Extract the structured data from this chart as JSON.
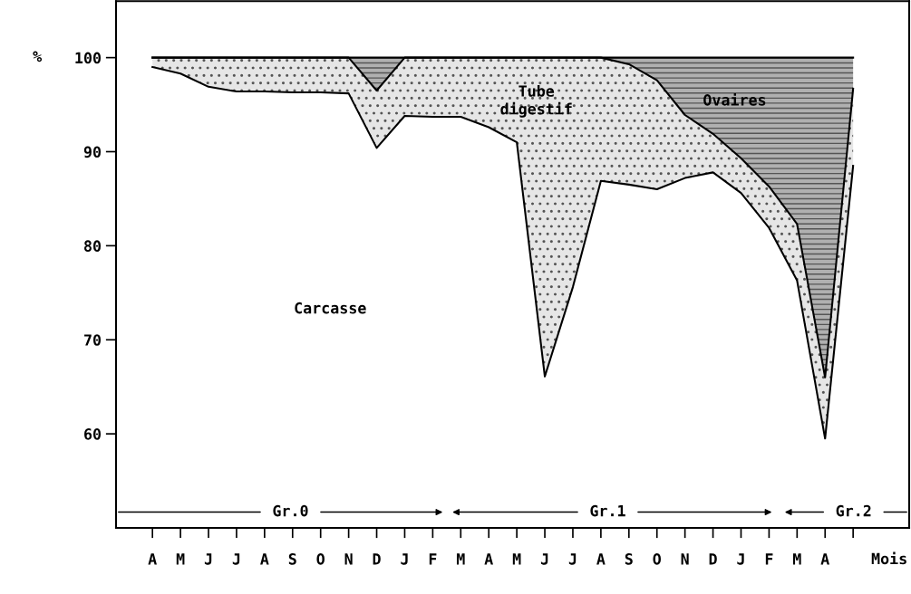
{
  "chart_data": {
    "type": "area",
    "ylabel": "%",
    "xlabel": "Mois",
    "categories": [
      "A",
      "M",
      "J",
      "J",
      "A",
      "S",
      "O",
      "N",
      "D",
      "J",
      "F",
      "M",
      "A",
      "M",
      "J",
      "J",
      "A",
      "S",
      "O",
      "N",
      "D",
      "J",
      "F",
      "M",
      "A",
      null
    ],
    "series": [
      {
        "color": "#ffffff",
        "values": [
          99.0,
          98.3,
          96.9,
          96.4,
          96.4,
          96.3,
          96.3,
          96.2,
          90.4,
          93.8,
          93.7,
          93.7,
          92.6,
          91.0,
          66.1,
          75.6,
          86.9,
          86.5,
          86.0,
          87.2,
          87.8,
          85.6,
          81.9,
          76.3,
          59.5,
          88.5
        ]
      },
      {
        "color": "#e6e6e6",
        "values": [
          100,
          100,
          100,
          100,
          100,
          100,
          100,
          100,
          96.5,
          100,
          100,
          100,
          100,
          100,
          100,
          100,
          100,
          99.3,
          97.6,
          93.9,
          91.9,
          89.3,
          86.3,
          82.3,
          66.0,
          96.7
        ]
      },
      {
        "color": "#b0b0b0",
        "values": [
          100,
          100,
          100,
          100,
          100,
          100,
          100,
          100,
          100,
          100,
          100,
          100,
          100,
          100,
          100,
          100,
          100,
          100,
          100,
          100,
          100,
          100,
          100,
          100,
          100,
          100
        ]
      }
    ],
    "annotations": [
      "Carcasse",
      "Tube\ndigestif",
      "Ovaires",
      "Gr.0",
      "Gr.1",
      "Gr.2"
    ],
    "ylim": [
      50,
      106
    ],
    "yticks": [
      60,
      70,
      80,
      90,
      100
    ],
    "grid": false,
    "legend": false
  }
}
